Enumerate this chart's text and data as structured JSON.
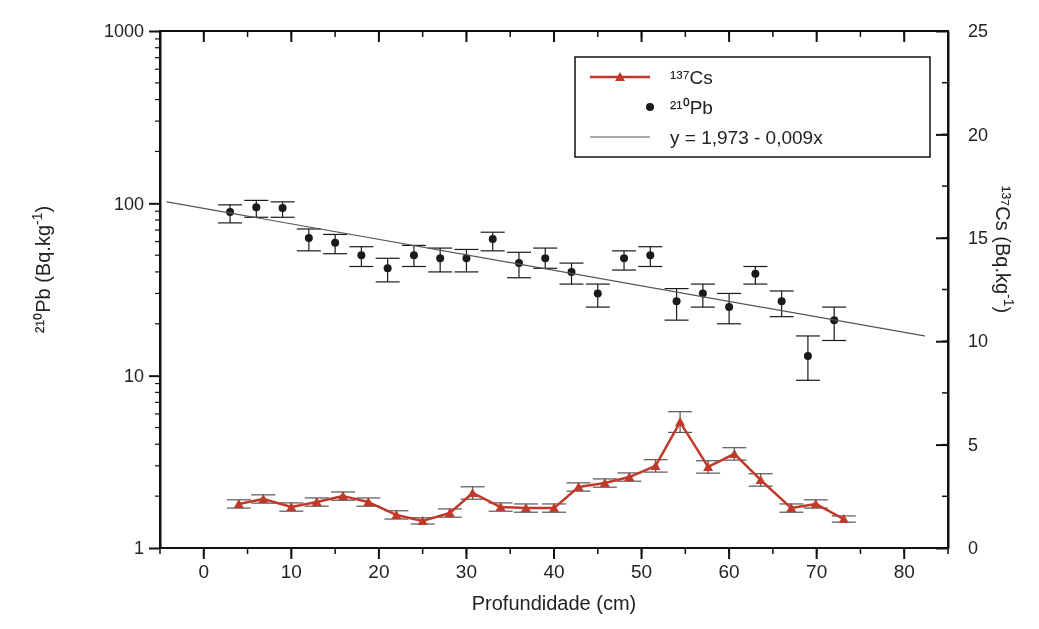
{
  "chart_data": {
    "type": "scatter",
    "xlabel": "Profundidade (cm)",
    "ylabel": "²¹⁰Pb (Bq.kg$^{-1}$)",
    "y2label": "¹³⁷Cs (Bq.kg$^{-1}$)",
    "xlim": [
      -5,
      85
    ],
    "xticks": [
      0,
      10,
      20,
      30,
      40,
      50,
      60,
      70,
      80
    ],
    "ylim": [
      1,
      1000
    ],
    "yticks": [
      1,
      10,
      100,
      1000
    ],
    "log": "y",
    "y2lim": [
      0,
      25
    ],
    "y2ticks": [
      0,
      5,
      10,
      15,
      20,
      25
    ],
    "grid": false,
    "legend": "top right",
    "series": [
      {
        "name": "¹³⁷Cs",
        "type": "line",
        "axis": "y2",
        "marker": "triangle",
        "color": "#c0392b",
        "x": [
          4.0,
          6.8,
          10.0,
          12.9,
          15.9,
          18.8,
          22.0,
          25.0,
          28.1,
          30.7,
          33.9,
          36.8,
          40.0,
          42.8,
          45.8,
          48.6,
          51.6,
          54.4,
          57.6,
          60.6,
          63.6,
          67.1,
          69.9,
          73.1
        ],
        "values": [
          2.13,
          2.37,
          1.98,
          2.22,
          2.51,
          2.22,
          1.6,
          1.31,
          1.69,
          2.66,
          1.98,
          1.93,
          1.93,
          2.95,
          3.14,
          3.43,
          3.97,
          6.09,
          3.92,
          4.55,
          3.29,
          1.93,
          2.13,
          1.4
        ],
        "errors": [
          0.2,
          0.2,
          0.2,
          0.2,
          0.2,
          0.2,
          0.2,
          0.15,
          0.2,
          0.3,
          0.2,
          0.2,
          0.2,
          0.2,
          0.2,
          0.2,
          0.3,
          0.5,
          0.3,
          0.3,
          0.3,
          0.2,
          0.2,
          0.15
        ]
      },
      {
        "name": "²¹⁰Pb",
        "type": "scatter",
        "marker": "circle",
        "color": "#1a1a1a",
        "x": [
          3,
          6,
          9,
          12,
          15,
          18,
          21,
          24,
          27,
          30,
          33,
          36,
          39,
          42,
          45,
          48,
          51,
          54,
          57,
          60,
          63,
          66,
          69,
          72
        ],
        "values": [
          89,
          95,
          94,
          63,
          59,
          50,
          42,
          50,
          48,
          48,
          62,
          45,
          48,
          40,
          30,
          48,
          50,
          27,
          30,
          25,
          39,
          27,
          13,
          21
        ],
        "errors": [
          [
            77,
            98
          ],
          [
            83,
            104
          ],
          [
            83,
            102
          ],
          [
            53,
            71
          ],
          [
            51,
            66
          ],
          [
            43,
            56
          ],
          [
            35,
            48
          ],
          [
            43,
            57
          ],
          [
            40,
            55
          ],
          [
            40,
            54
          ],
          [
            53,
            68
          ],
          [
            37,
            52
          ],
          [
            42,
            55
          ],
          [
            34,
            45
          ],
          [
            25,
            34
          ],
          [
            41,
            53
          ],
          [
            43,
            56
          ],
          [
            21,
            32
          ],
          [
            25,
            34
          ],
          [
            20,
            30
          ],
          [
            34,
            43
          ],
          [
            22,
            31
          ],
          [
            9.4,
            17
          ],
          [
            16,
            25
          ]
        ]
      },
      {
        "name": "y = 1,973 - 0,009x",
        "type": "line",
        "marker": "none",
        "color": "#555555",
        "x": [
          -4.2,
          82.3
        ],
        "values": [
          102,
          17
        ]
      }
    ]
  }
}
